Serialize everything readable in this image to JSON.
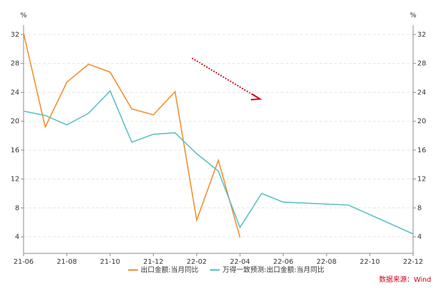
{
  "chart_data": {
    "type": "line",
    "unit_left": "%",
    "unit_right": "%",
    "xlim": [
      0,
      18
    ],
    "xticks": [
      {
        "value": 0,
        "label": "21-06"
      },
      {
        "value": 2,
        "label": "21-08"
      },
      {
        "value": 4,
        "label": "21-10"
      },
      {
        "value": 6,
        "label": "21-12"
      },
      {
        "value": 8,
        "label": "22-02"
      },
      {
        "value": 10,
        "label": "22-04"
      },
      {
        "value": 12,
        "label": "22-06"
      },
      {
        "value": 14,
        "label": "22-08"
      },
      {
        "value": 16,
        "label": "22-10"
      },
      {
        "value": 18,
        "label": "22-12"
      }
    ],
    "ylim": [
      1.7,
      33.3
    ],
    "yticks": [
      4,
      8,
      12,
      16,
      20,
      24,
      28,
      32
    ],
    "y2lim": [
      1.7,
      33.3
    ],
    "y2ticks": [
      4,
      8,
      12,
      16,
      20,
      24,
      28,
      32
    ],
    "grid": true,
    "series": [
      {
        "name": "出口金额:当月同比",
        "color": "#f28e2b",
        "x": [
          0,
          1,
          2,
          3,
          4,
          5,
          6,
          7,
          8,
          9,
          10
        ],
        "values": [
          32.2,
          19.2,
          25.4,
          27.9,
          26.8,
          21.7,
          20.9,
          24.1,
          6.3,
          14.6,
          3.9
        ]
      },
      {
        "name": "万得一致预测:出口金额:当月同比",
        "color": "#5bbfc4",
        "x": [
          0,
          1,
          2,
          3,
          4,
          5,
          6,
          7,
          8,
          9,
          10,
          11,
          12,
          15,
          18
        ],
        "values": [
          21.4,
          20.8,
          19.5,
          21.1,
          24.2,
          17.1,
          18.2,
          18.4,
          15.5,
          13.1,
          5.3,
          10.0,
          8.8,
          8.4,
          4.4
        ]
      }
    ],
    "source": "数据来源：Wind"
  }
}
